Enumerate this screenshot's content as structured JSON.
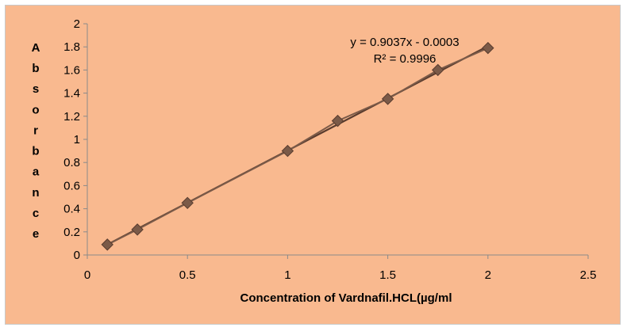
{
  "chart_data": {
    "type": "scatter",
    "title": "",
    "xlabel": "Concentration of Vardnafil.HCL(µg/ml",
    "ylabel": "Absorbance",
    "xlim": [
      0,
      2.5
    ],
    "ylim": [
      0,
      2
    ],
    "x_ticks": [
      "0",
      "0.5",
      "1",
      "1.5",
      "2",
      "2.5"
    ],
    "y_ticks": [
      "0",
      "0.2",
      "0.4",
      "0.6",
      "0.8",
      "1",
      "1.2",
      "1.4",
      "1.6",
      "1.8",
      "2"
    ],
    "series": [
      {
        "x": [
          0.1,
          0.25,
          0.5,
          1.0,
          1.25,
          1.5,
          1.75,
          2.0
        ],
        "y": [
          0.09,
          0.22,
          0.45,
          0.9,
          1.16,
          1.35,
          1.6,
          1.79
        ],
        "color": "#7b5a48"
      }
    ],
    "trendline": {
      "slope": 0.9037,
      "intercept": -0.0003,
      "color": "#5a3c2e"
    },
    "annotations": {
      "equation": "y = 0.9037x - 0.0003",
      "r_squared": "R² = 0.9996"
    },
    "grid": false,
    "legend": "none"
  },
  "colors": {
    "background": "#f9b98f",
    "axis": "#8a8a8a"
  }
}
